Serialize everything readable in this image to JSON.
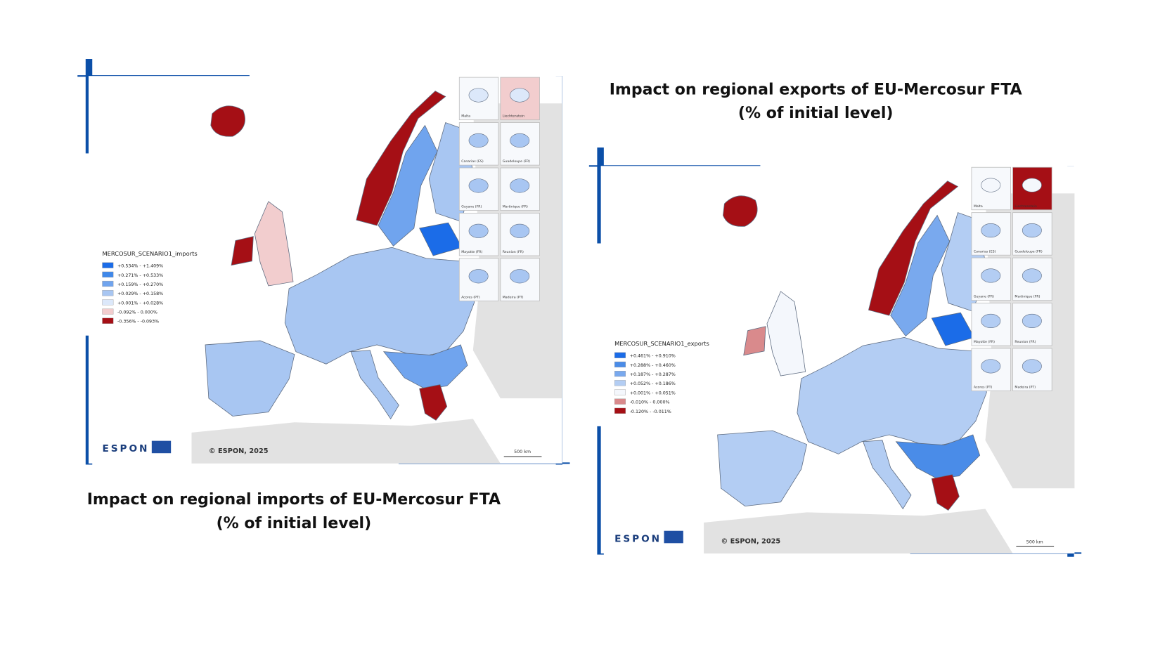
{
  "maps": [
    {
      "caption": [
        "Impact on regional imports of EU-Mercosur FTA",
        "(% of initial level)"
      ],
      "legend_title": "MERCOSUR_SCENARIO1_imports",
      "legend": [
        {
          "label": "+0.534% - +1.409%",
          "color": "#1b6ce8"
        },
        {
          "label": "+0.271% - +0.533%",
          "color": "#3f88ea"
        },
        {
          "label": "+0.159% - +0.270%",
          "color": "#70a4ee"
        },
        {
          "label": "+0.029% - +0.158%",
          "color": "#a8c6f2"
        },
        {
          "label": "+0.001% - +0.028%",
          "color": "#dce8fa"
        },
        {
          "label": "-0.092% - 0.000%",
          "color": "#f2cdce"
        },
        {
          "label": "-0.356% - -0.093%",
          "color": "#a50f15"
        }
      ],
      "insets": [
        "Malta",
        "Liechtenstein",
        "Canarias (ES)",
        "Guadeloupe (FR)",
        "Guyane (FR)",
        "Martinique (FR)",
        "Mayotte (FR)",
        "Reunion (FR)",
        "Acores (PT)",
        "Madeira (PT)"
      ],
      "logo": "ESPON",
      "credit": "© ESPON, 2025",
      "scale": "500 km"
    },
    {
      "caption": [
        "Impact on regional exports of EU-Mercosur FTA",
        "(% of initial level)"
      ],
      "legend_title": "MERCOSUR_SCENARIO1_exports",
      "legend": [
        {
          "label": "+0.461% - +0.910%",
          "color": "#1b6ce8"
        },
        {
          "label": "+0.288% - +0.460%",
          "color": "#4a8ce8"
        },
        {
          "label": "+0.187% - +0.287%",
          "color": "#79a9ee"
        },
        {
          "label": "+0.052% - +0.186%",
          "color": "#b3cdf3"
        },
        {
          "label": "+0.001% - +0.051%",
          "color": "#f4f7fc"
        },
        {
          "label": "-0.010% - 0.000%",
          "color": "#d98a8c"
        },
        {
          "label": "-0.120% - -0.011%",
          "color": "#a50f15"
        }
      ],
      "insets": [
        "Malta",
        "Liechtenstein",
        "Canarias (ES)",
        "Guadeloupe (FR)",
        "Guyane (FR)",
        "Martinique (FR)",
        "Mayotte (FR)",
        "Reunion (FR)",
        "Acores (PT)",
        "Madeira (PT)"
      ],
      "logo": "ESPON",
      "credit": "© ESPON, 2025",
      "scale": "500 km"
    }
  ]
}
